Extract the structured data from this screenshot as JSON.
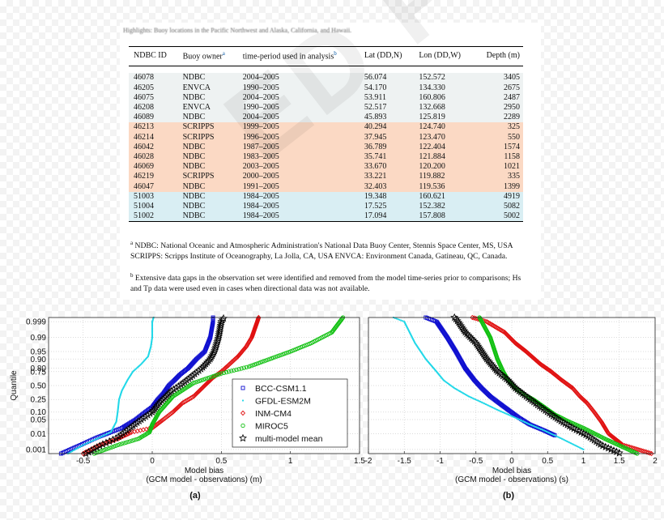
{
  "caption_top": "Highlights: Buoy locations in the Pacific Northwest and Alaska, California, and Hawaii.",
  "table": {
    "headers": [
      "NDBC ID",
      "Buoy owner",
      "time-period used in analysis",
      "Lat (DD,N)",
      "Lon (DD,W)",
      "Depth (m)"
    ],
    "header_sup": {
      "owner": "a",
      "period": "b"
    },
    "groups": [
      {
        "color": "gray",
        "rows": [
          [
            "46078",
            "NDBC",
            "2004–2005",
            "56.074",
            "152.572",
            "3405"
          ],
          [
            "46205",
            "ENVCA",
            "1990–2005",
            "54.170",
            "134.330",
            "2675"
          ],
          [
            "46075",
            "NDBC",
            "2004–2005",
            "53.911",
            "160.806",
            "2487"
          ],
          [
            "46208",
            "ENVCA",
            "1990–2005",
            "52.517",
            "132.668",
            "2950"
          ],
          [
            "46089",
            "NDBC",
            "2004–2005",
            "45.893",
            "125.819",
            "2289"
          ]
        ]
      },
      {
        "color": "orange",
        "rows": [
          [
            "46213",
            "SCRIPPS",
            "1999–2005",
            "40.294",
            "124.740",
            "325"
          ],
          [
            "46214",
            "SCRIPPS",
            "1996–2005",
            "37.945",
            "123.470",
            "550"
          ],
          [
            "46042",
            "NDBC",
            "1987–2005",
            "36.789",
            "122.404",
            "1574"
          ],
          [
            "46028",
            "NDBC",
            "1983–2005",
            "35.741",
            "121.884",
            "1158"
          ],
          [
            "46069",
            "NDBC",
            "2003–2005",
            "33.670",
            "120.200",
            "1021"
          ],
          [
            "46219",
            "SCRIPPS",
            "2000–2005",
            "33.221",
            "119.882",
            "335"
          ],
          [
            "46047",
            "NDBC",
            "1991–2005",
            "32.403",
            "119.536",
            "1399"
          ]
        ]
      },
      {
        "color": "blue",
        "rows": [
          [
            "51003",
            "NDBC",
            "1984–2005",
            "19.348",
            "160.621",
            "4919"
          ],
          [
            "51004",
            "NDBC",
            "1984–2005",
            "17.525",
            "152.382",
            "5082"
          ],
          [
            "51002",
            "NDBC",
            "1984–2005",
            "17.094",
            "157.808",
            "5002"
          ]
        ]
      }
    ],
    "footnote_a_mark": "a",
    "footnote_a": "NDBC: National Oceanic and Atmospheric Administration's National Data Buoy Center, Stennis Space Center, MS, USA SCRIPPS: Scripps Institute of Oceanography, La Jolla, CA, USA ENVCA: Environment Canada, Gatineau, QC, Canada.",
    "footnote_b_mark": "b",
    "footnote_b": "Extensive data gaps in the observation set were identified and removed from the model time-series prior to comparisons; Hs and Tp data were used even in cases when directional data was not available."
  },
  "watermark": "ED PROOF",
  "colors": {
    "BCC-CSM1.1": "#1010d0",
    "GFDL-ESM2M": "#22d8e8",
    "INM-CM4": "#e01010",
    "MIROC5": "#10c010",
    "multi-model mean": "#000000"
  },
  "chart_data": [
    {
      "type": "scatter",
      "panel_label": "(a)",
      "xlabel": "Model bias",
      "xlabel_line2": "(GCM model - observations) (m)",
      "ylabel": "Quantile",
      "xlim": [
        -0.75,
        1.5
      ],
      "xticks": [
        -0.5,
        0,
        0.5,
        1,
        1.5
      ],
      "xtick_labels": [
        "-0.5",
        "0",
        "0.5",
        "1",
        "1.5"
      ],
      "yscale": "normal-probability",
      "yticks": [
        0.001,
        0.01,
        0.05,
        0.1,
        0.25,
        0.5,
        0.75,
        0.8,
        0.9,
        0.95,
        0.99,
        0.999
      ],
      "ytick_labels": [
        "0.001",
        "0.01",
        "0.05",
        "0.10",
        "0.25",
        "0.50",
        "0.75",
        "0.80",
        "0.90",
        "0.95",
        "0.99",
        "0.999"
      ],
      "legend_placement": "bottom-right",
      "series": [
        {
          "name": "BCC-CSM1.1",
          "marker": "square",
          "points": [
            [
              -0.66,
              0.0005
            ],
            [
              -0.52,
              0.002
            ],
            [
              -0.4,
              0.006
            ],
            [
              -0.3,
              0.012
            ],
            [
              -0.22,
              0.02
            ],
            [
              -0.12,
              0.05
            ],
            [
              -0.05,
              0.1
            ],
            [
              0.0,
              0.15
            ],
            [
              0.04,
              0.25
            ],
            [
              0.08,
              0.35
            ],
            [
              0.12,
              0.5
            ],
            [
              0.16,
              0.6
            ],
            [
              0.2,
              0.7
            ],
            [
              0.26,
              0.8
            ],
            [
              0.32,
              0.9
            ],
            [
              0.38,
              0.95
            ],
            [
              0.42,
              0.99
            ],
            [
              0.44,
              0.999
            ],
            [
              0.44,
              0.9995
            ]
          ]
        },
        {
          "name": "GFDL-ESM2M",
          "marker": "dot",
          "points": [
            [
              -0.61,
              0.0005
            ],
            [
              -0.5,
              0.002
            ],
            [
              -0.4,
              0.005
            ],
            [
              -0.3,
              0.012
            ],
            [
              -0.26,
              0.04
            ],
            [
              -0.25,
              0.1
            ],
            [
              -0.24,
              0.25
            ],
            [
              -0.22,
              0.4
            ],
            [
              -0.18,
              0.6
            ],
            [
              -0.14,
              0.75
            ],
            [
              -0.08,
              0.85
            ],
            [
              -0.03,
              0.92
            ],
            [
              -0.01,
              0.97
            ],
            [
              0.0,
              0.99
            ],
            [
              0.0,
              0.999
            ],
            [
              0.01,
              0.9995
            ]
          ]
        },
        {
          "name": "INM-CM4",
          "marker": "diamond",
          "points": [
            [
              -0.5,
              0.0005
            ],
            [
              -0.38,
              0.002
            ],
            [
              -0.25,
              0.005
            ],
            [
              -0.15,
              0.012
            ],
            [
              0.0,
              0.02
            ],
            [
              0.08,
              0.05
            ],
            [
              0.15,
              0.1
            ],
            [
              0.22,
              0.2
            ],
            [
              0.3,
              0.3
            ],
            [
              0.38,
              0.5
            ],
            [
              0.44,
              0.65
            ],
            [
              0.5,
              0.75
            ],
            [
              0.56,
              0.85
            ],
            [
              0.62,
              0.92
            ],
            [
              0.68,
              0.97
            ],
            [
              0.72,
              0.99
            ],
            [
              0.76,
              0.999
            ],
            [
              0.77,
              0.9995
            ]
          ]
        },
        {
          "name": "MIROC5",
          "marker": "circle",
          "points": [
            [
              -0.42,
              0.0005
            ],
            [
              -0.25,
              0.002
            ],
            [
              -0.1,
              0.005
            ],
            [
              -0.02,
              0.012
            ],
            [
              0.0,
              0.03
            ],
            [
              0.05,
              0.1
            ],
            [
              0.15,
              0.3
            ],
            [
              0.3,
              0.55
            ],
            [
              0.5,
              0.72
            ],
            [
              0.7,
              0.82
            ],
            [
              0.85,
              0.9
            ],
            [
              1.0,
              0.95
            ],
            [
              1.15,
              0.98
            ],
            [
              1.3,
              0.995
            ],
            [
              1.38,
              0.9995
            ]
          ]
        },
        {
          "name": "multi-model mean",
          "marker": "star",
          "points": [
            [
              -0.48,
              0.0005
            ],
            [
              -0.37,
              0.002
            ],
            [
              -0.25,
              0.006
            ],
            [
              -0.16,
              0.02
            ],
            [
              -0.08,
              0.05
            ],
            [
              0.0,
              0.1
            ],
            [
              0.05,
              0.2
            ],
            [
              0.1,
              0.3
            ],
            [
              0.14,
              0.4
            ],
            [
              0.2,
              0.5
            ],
            [
              0.25,
              0.6
            ],
            [
              0.3,
              0.7
            ],
            [
              0.36,
              0.8
            ],
            [
              0.42,
              0.9
            ],
            [
              0.45,
              0.95
            ],
            [
              0.48,
              0.99
            ],
            [
              0.5,
              0.999
            ],
            [
              0.52,
              0.9995
            ]
          ]
        }
      ]
    },
    {
      "type": "scatter",
      "panel_label": "(b)",
      "xlabel": "Model bias",
      "xlabel_line2": "(GCM model - observations) (s)",
      "xlim": [
        -2,
        2
      ],
      "xticks": [
        -2,
        -1.5,
        -1,
        -0.5,
        0,
        0.5,
        1,
        1.5,
        2
      ],
      "xtick_labels": [
        "-2",
        "-1.5",
        "-1",
        "-0.5",
        "0",
        "0.5",
        "1",
        "1.5",
        "2"
      ],
      "yscale": "normal-probability",
      "series": [
        {
          "name": "BCC-CSM1.1",
          "marker": "square",
          "points": [
            [
              -1.2,
              0.9995
            ],
            [
              -1.05,
              0.999
            ],
            [
              -0.9,
              0.99
            ],
            [
              -0.78,
              0.95
            ],
            [
              -0.65,
              0.8
            ],
            [
              -0.52,
              0.6
            ],
            [
              -0.42,
              0.45
            ],
            [
              -0.3,
              0.3
            ],
            [
              -0.18,
              0.2
            ],
            [
              -0.05,
              0.12
            ],
            [
              0.1,
              0.06
            ],
            [
              0.25,
              0.03
            ],
            [
              0.45,
              0.015
            ],
            [
              0.6,
              0.008
            ]
          ]
        },
        {
          "name": "GFDL-ESM2M",
          "marker": "dot",
          "points": [
            [
              -1.65,
              0.9995
            ],
            [
              -1.5,
              0.999
            ],
            [
              -1.35,
              0.98
            ],
            [
              -1.2,
              0.9
            ],
            [
              -1.05,
              0.75
            ],
            [
              -0.95,
              0.6
            ],
            [
              -0.8,
              0.45
            ],
            [
              -0.6,
              0.3
            ],
            [
              -0.4,
              0.2
            ],
            [
              -0.2,
              0.12
            ],
            [
              0.05,
              0.06
            ],
            [
              0.25,
              0.03
            ],
            [
              0.45,
              0.015
            ],
            [
              0.7,
              0.005
            ],
            [
              1.0,
              0.001
            ]
          ]
        },
        {
          "name": "INM-CM4",
          "marker": "diamond",
          "points": [
            [
              -0.55,
              0.9995
            ],
            [
              -0.35,
              0.999
            ],
            [
              -0.1,
              0.995
            ],
            [
              0.05,
              0.98
            ],
            [
              0.2,
              0.95
            ],
            [
              0.4,
              0.85
            ],
            [
              0.55,
              0.75
            ],
            [
              0.7,
              0.6
            ],
            [
              0.85,
              0.45
            ],
            [
              0.95,
              0.3
            ],
            [
              1.05,
              0.2
            ],
            [
              1.15,
              0.1
            ],
            [
              1.25,
              0.04
            ],
            [
              1.35,
              0.01
            ],
            [
              1.55,
              0.002
            ],
            [
              1.95,
              0.0005
            ]
          ]
        },
        {
          "name": "MIROC5",
          "marker": "circle",
          "points": [
            [
              -0.45,
              0.9995
            ],
            [
              -0.3,
              0.99
            ],
            [
              -0.2,
              0.9
            ],
            [
              -0.12,
              0.75
            ],
            [
              -0.05,
              0.6
            ],
            [
              0.05,
              0.45
            ],
            [
              0.15,
              0.35
            ],
            [
              0.3,
              0.25
            ],
            [
              0.45,
              0.15
            ],
            [
              0.6,
              0.08
            ],
            [
              0.8,
              0.04
            ],
            [
              1.0,
              0.02
            ],
            [
              1.3,
              0.005
            ],
            [
              1.75,
              0.0005
            ]
          ]
        },
        {
          "name": "multi-model mean",
          "marker": "star",
          "points": [
            [
              -0.8,
              0.9995
            ],
            [
              -0.75,
              0.999
            ],
            [
              -0.65,
              0.995
            ],
            [
              -0.5,
              0.98
            ],
            [
              -0.35,
              0.9
            ],
            [
              -0.2,
              0.75
            ],
            [
              -0.05,
              0.6
            ],
            [
              0.05,
              0.45
            ],
            [
              0.2,
              0.3
            ],
            [
              0.4,
              0.15
            ],
            [
              0.55,
              0.08
            ],
            [
              0.7,
              0.04
            ],
            [
              0.85,
              0.02
            ],
            [
              1.05,
              0.008
            ],
            [
              1.25,
              0.002
            ],
            [
              1.52,
              0.0005
            ]
          ]
        }
      ]
    }
  ]
}
